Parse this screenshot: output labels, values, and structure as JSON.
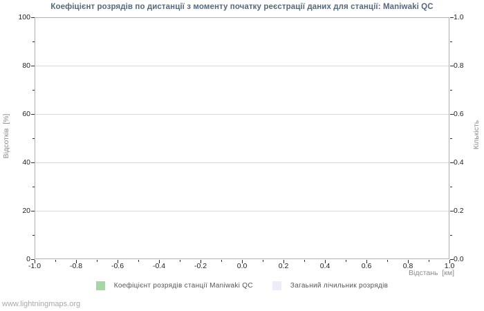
{
  "watermark": "www.lightningmaps.org",
  "colors": {
    "title_text": "#54687e",
    "axis_label_text": "#8a8a8a",
    "tick_label_text": "#1d1d1d",
    "legend_text": "#555555",
    "grid_line": "#d9d9d9",
    "plot_frame": "#b0b0b0",
    "series_station_ratio": "#a3d7a3",
    "series_total_counter": "#edecf8",
    "watermark_text": "#a8a8a8"
  },
  "chart_data": {
    "type": "line",
    "title": "Коефіцієнт розрядів по дистанції з моменту початку реєстрації даних для станції: Maniwaki QC",
    "xlabel": "Відстань  [км]",
    "ylabel_left": "Відсотків  [%]",
    "ylabel_right": "Кількість",
    "xlim": [
      -1.0,
      1.0
    ],
    "ylim_left": [
      0,
      100
    ],
    "ylim_right": [
      0.0,
      1.0
    ],
    "x_ticks": [
      "-1.0",
      "-0.8",
      "-0.6",
      "-0.4",
      "-0.2",
      "0.0",
      "0.2",
      "0.4",
      "0.6",
      "0.8",
      "1.0"
    ],
    "y_ticks_left": [
      "0",
      "20",
      "40",
      "60",
      "80",
      "100"
    ],
    "y_ticks_right": [
      "0.0",
      "0.2",
      "0.4",
      "0.6",
      "0.8",
      "1.0"
    ],
    "grid": "horizontal-only",
    "legend_position": "bottom-center",
    "series": [
      {
        "name": "Коефіцієнт розрядів станції Maniwaki QC",
        "color": "#a3d7a3",
        "x": [],
        "values": []
      },
      {
        "name": "Загаьний лічильник розрядів",
        "color": "#edecf8",
        "x": [],
        "values": []
      }
    ],
    "plotted_points": "none — axes are empty, no data drawn"
  }
}
